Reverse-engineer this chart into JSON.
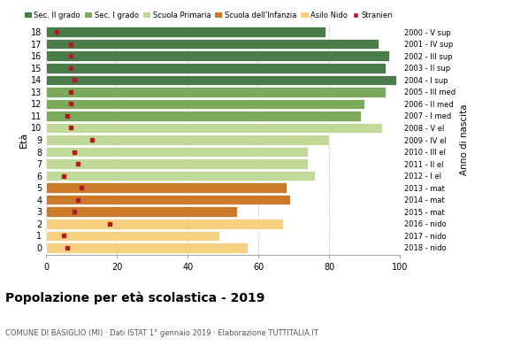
{
  "ages": [
    18,
    17,
    16,
    15,
    14,
    13,
    12,
    11,
    10,
    9,
    8,
    7,
    6,
    5,
    4,
    3,
    2,
    1,
    0
  ],
  "years": [
    "2000 - V sup",
    "2001 - IV sup",
    "2002 - III sup",
    "2003 - II sup",
    "2004 - I sup",
    "2005 - III med",
    "2006 - II med",
    "2007 - I med",
    "2008 - V el",
    "2009 - IV el",
    "2010 - III el",
    "2011 - II el",
    "2012 - I el",
    "2013 - mat",
    "2014 - mat",
    "2015 - mat",
    "2016 - nido",
    "2017 - nido",
    "2018 - nido"
  ],
  "bar_values": [
    79,
    94,
    97,
    96,
    99,
    96,
    90,
    89,
    95,
    80,
    74,
    74,
    76,
    68,
    69,
    54,
    67,
    49,
    57
  ],
  "bar_colors": [
    "#4a7c4a",
    "#4a7c4a",
    "#4a7c4a",
    "#4a7c4a",
    "#4a7c4a",
    "#7aaa5a",
    "#7aaa5a",
    "#7aaa5a",
    "#c0d898",
    "#c0d898",
    "#c0d898",
    "#c0d898",
    "#c0d898",
    "#cc7a2a",
    "#cc7a2a",
    "#cc7a2a",
    "#f5d080",
    "#f5d080",
    "#f5d080"
  ],
  "stranieri_values": [
    3,
    7,
    7,
    7,
    8,
    7,
    7,
    6,
    7,
    13,
    8,
    9,
    5,
    10,
    9,
    8,
    18,
    5,
    6
  ],
  "stranieri_color": "#aa2020",
  "legend_labels": [
    "Sec. II grado",
    "Sec. I grado",
    "Scuola Primaria",
    "Scuola dell'Infanzia",
    "Asilo Nido",
    "Stranieri"
  ],
  "legend_colors": [
    "#4a7c4a",
    "#7aaa5a",
    "#c0d898",
    "#cc7a2a",
    "#f5d080",
    "#aa2020"
  ],
  "title": "Popolazione per età scolastica - 2019",
  "subtitle": "COMUNE DI BASIGLIO (MI) · Dati ISTAT 1° gennaio 2019 · Elaborazione TUTTITALIA.IT",
  "ylabel_text": "Età",
  "ylabel2_text": "Anno di nascita",
  "xlim": [
    0,
    100
  ],
  "xticks": [
    0,
    20,
    40,
    60,
    80,
    100
  ],
  "background_color": "#ffffff",
  "bar_height": 0.85,
  "grid_color": "#cccccc"
}
